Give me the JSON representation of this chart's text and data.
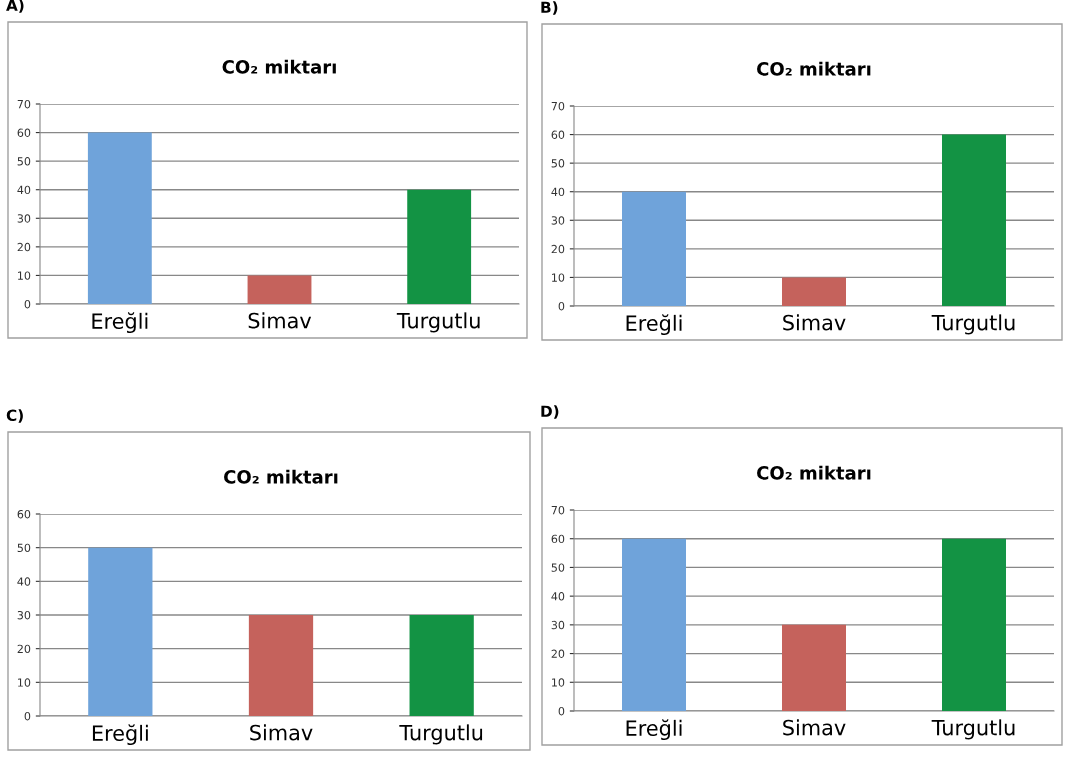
{
  "chart_data": [
    {
      "type": "bar",
      "title": "CO₂ miktarı",
      "annotations": [
        "A)"
      ],
      "categories": [
        "Ereğli",
        "Simav",
        "Turgutlu"
      ],
      "values": [
        60,
        10,
        40
      ],
      "colors": [
        "#6fa3da",
        "#c5625c",
        "#139344"
      ],
      "ylim": [
        0,
        70
      ],
      "yticks": [
        0,
        10,
        20,
        30,
        40,
        50,
        60,
        70
      ],
      "grid": "y"
    },
    {
      "type": "bar",
      "title": "CO₂ miktarı",
      "annotations": [
        "B)"
      ],
      "categories": [
        "Ereğli",
        "Simav",
        "Turgutlu"
      ],
      "values": [
        40,
        10,
        60
      ],
      "colors": [
        "#6fa3da",
        "#c5625c",
        "#139344"
      ],
      "ylim": [
        0,
        70
      ],
      "yticks": [
        0,
        10,
        20,
        30,
        40,
        50,
        60,
        70
      ],
      "grid": "y"
    },
    {
      "type": "bar",
      "title": "CO₂ miktarı",
      "annotations": [
        "C)"
      ],
      "categories": [
        "Ereğli",
        "Simav",
        "Turgutlu"
      ],
      "values": [
        50,
        30,
        30
      ],
      "colors": [
        "#6fa3da",
        "#c5625c",
        "#139344"
      ],
      "ylim": [
        0,
        60
      ],
      "yticks": [
        0,
        10,
        20,
        30,
        40,
        50,
        60
      ],
      "grid": "y"
    },
    {
      "type": "bar",
      "title": "CO₂ miktarı",
      "annotations": [
        "D)"
      ],
      "categories": [
        "Ereğli",
        "Simav",
        "Turgutlu"
      ],
      "values": [
        60,
        30,
        60
      ],
      "colors": [
        "#6fa3da",
        "#c5625c",
        "#139344"
      ],
      "ylim": [
        0,
        70
      ],
      "yticks": [
        0,
        10,
        20,
        30,
        40,
        50,
        60,
        70
      ],
      "grid": "y"
    }
  ]
}
